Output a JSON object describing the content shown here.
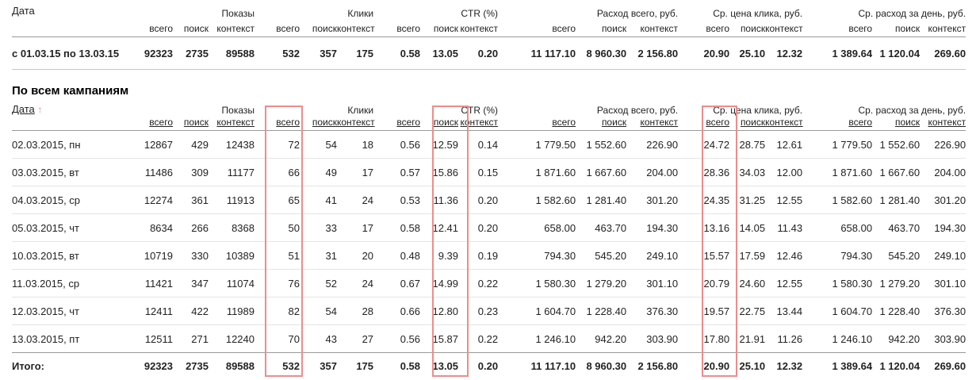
{
  "columns": {
    "date_header": "Дата",
    "groups": [
      {
        "label": "Показы",
        "subs": [
          "всего",
          "поиск",
          "контекст"
        ]
      },
      {
        "label": "Клики",
        "subs": [
          "всего",
          "поиск",
          "контекст"
        ]
      },
      {
        "label": "CTR (%)",
        "subs": [
          "всего",
          "поиск",
          "контекст"
        ]
      },
      {
        "label": "Расход всего, руб.",
        "subs": [
          "всего",
          "поиск",
          "контекст"
        ]
      },
      {
        "label": "Ср. цена клика, руб.",
        "subs": [
          "всего",
          "поиск",
          "контекст"
        ]
      },
      {
        "label": "Ср. расход за день, руб.",
        "subs": [
          "всего",
          "поиск",
          "контекст"
        ]
      }
    ]
  },
  "summary_table": {
    "date_header": "Дата",
    "rows": [
      [
        "с 01.03.15 по 13.03.15",
        "92323",
        "2735",
        "89588",
        "532",
        "357",
        "175",
        "0.58",
        "13.05",
        "0.20",
        "11 117.10",
        "8 960.30",
        "2 156.80",
        "20.90",
        "25.10",
        "12.32",
        "1 389.64",
        "1 120.04",
        "269.60"
      ]
    ]
  },
  "section": {
    "title": "По всем кампаниям"
  },
  "campaigns_table": {
    "date_header": "Дата",
    "sort_arrow": "↑",
    "rows": [
      [
        "02.03.2015, пн",
        "12867",
        "429",
        "12438",
        "72",
        "54",
        "18",
        "0.56",
        "12.59",
        "0.14",
        "1 779.50",
        "1 552.60",
        "226.90",
        "24.72",
        "28.75",
        "12.61",
        "1 779.50",
        "1 552.60",
        "226.90"
      ],
      [
        "03.03.2015, вт",
        "11486",
        "309",
        "11177",
        "66",
        "49",
        "17",
        "0.57",
        "15.86",
        "0.15",
        "1 871.60",
        "1 667.60",
        "204.00",
        "28.36",
        "34.03",
        "12.00",
        "1 871.60",
        "1 667.60",
        "204.00"
      ],
      [
        "04.03.2015, ср",
        "12274",
        "361",
        "11913",
        "65",
        "41",
        "24",
        "0.53",
        "11.36",
        "0.20",
        "1 582.60",
        "1 281.40",
        "301.20",
        "24.35",
        "31.25",
        "12.55",
        "1 582.60",
        "1 281.40",
        "301.20"
      ],
      [
        "05.03.2015, чт",
        "8634",
        "266",
        "8368",
        "50",
        "33",
        "17",
        "0.58",
        "12.41",
        "0.20",
        "658.00",
        "463.70",
        "194.30",
        "13.16",
        "14.05",
        "11.43",
        "658.00",
        "463.70",
        "194.30"
      ],
      [
        "10.03.2015, вт",
        "10719",
        "330",
        "10389",
        "51",
        "31",
        "20",
        "0.48",
        "9.39",
        "0.19",
        "794.30",
        "545.20",
        "249.10",
        "15.57",
        "17.59",
        "12.46",
        "794.30",
        "545.20",
        "249.10"
      ],
      [
        "11.03.2015, ср",
        "11421",
        "347",
        "11074",
        "76",
        "52",
        "24",
        "0.67",
        "14.99",
        "0.22",
        "1 580.30",
        "1 279.20",
        "301.10",
        "20.79",
        "24.60",
        "12.55",
        "1 580.30",
        "1 279.20",
        "301.10"
      ],
      [
        "12.03.2015, чт",
        "12411",
        "422",
        "11989",
        "82",
        "54",
        "28",
        "0.66",
        "12.80",
        "0.23",
        "1 604.70",
        "1 228.40",
        "376.30",
        "19.57",
        "22.75",
        "13.44",
        "1 604.70",
        "1 228.40",
        "376.30"
      ],
      [
        "13.03.2015, пт",
        "12511",
        "271",
        "12240",
        "70",
        "43",
        "27",
        "0.56",
        "15.87",
        "0.22",
        "1 246.10",
        "942.20",
        "303.90",
        "17.80",
        "21.91",
        "11.26",
        "1 246.10",
        "942.20",
        "303.90"
      ]
    ],
    "totals": [
      [
        "Итого:",
        "92323",
        "2735",
        "89588",
        "532",
        "357",
        "175",
        "0.58",
        "13.05",
        "0.20",
        "11 117.10",
        "8 960.30",
        "2 156.80",
        "20.90",
        "25.10",
        "12.32",
        "1 389.64",
        "1 120.04",
        "269.60"
      ]
    ]
  },
  "highlights": {
    "color": "#ee8c8c",
    "boxes": [
      "Клики — всего",
      "CTR (%) — поиск",
      "Ср. цена клика — всего"
    ]
  }
}
